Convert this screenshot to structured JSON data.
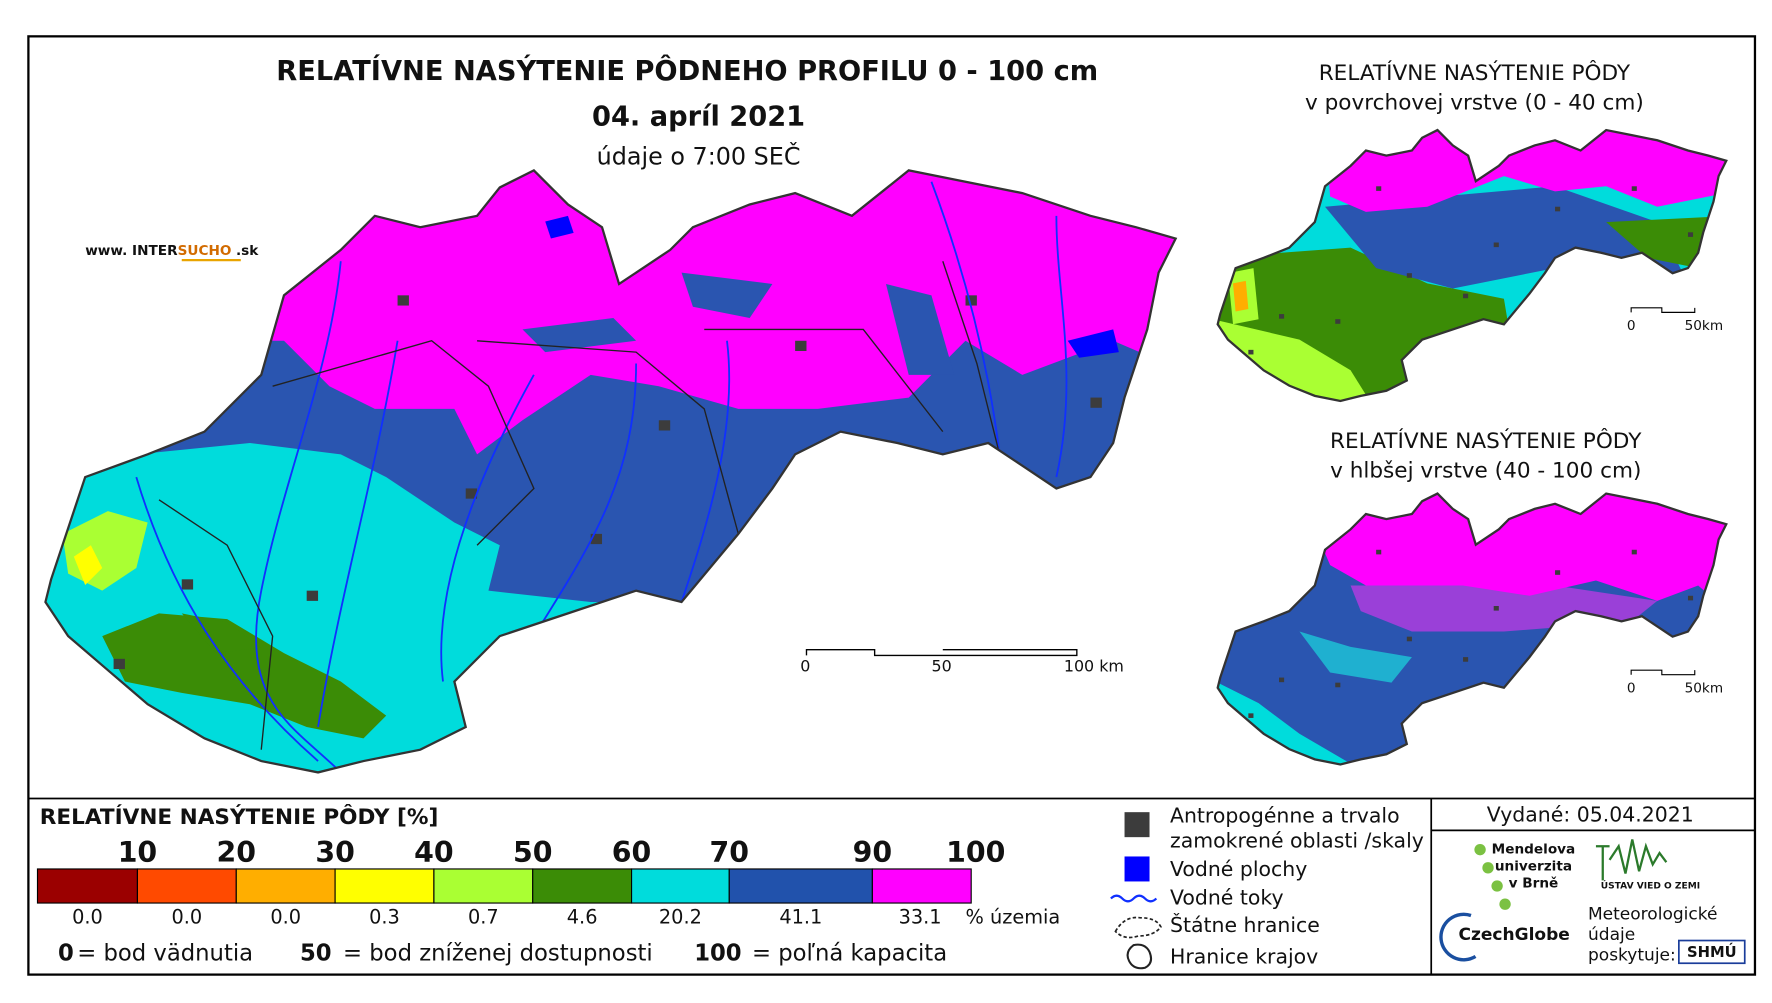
{
  "header": {
    "title": "RELATÍVNE NASÝTENIE PÔDNEHO PROFILU 0 - 100 cm",
    "date": "04. apríl 2021",
    "time_note": "údaje o 7:00 SEČ"
  },
  "website": {
    "prefix": "www. INTER",
    "brand": "SUCHO",
    "suffix": ".sk"
  },
  "main_map": {
    "scale_labels": [
      "0",
      "50",
      "100 km"
    ]
  },
  "insets": [
    {
      "title": "RELATÍVNE NASÝTENIE PÔDY",
      "subtitle": "v povrchovej vrstve (0 - 40 cm)",
      "scale_labels": [
        "0",
        "50km"
      ]
    },
    {
      "title": "RELATÍVNE NASÝTENIE PÔDY",
      "subtitle": "v hlbšej vrstve (40 - 100 cm)",
      "scale_labels": [
        "0",
        "50km"
      ]
    }
  ],
  "legend": {
    "title": "RELATÍVNE NASÝTENIE PÔDY [%]",
    "breaks": [
      "10",
      "20",
      "30",
      "40",
      "50",
      "60",
      "70",
      "90",
      "100"
    ],
    "classes": [
      {
        "color": "#9b0000",
        "share": "0.0"
      },
      {
        "color": "#ff4a00",
        "share": "0.0"
      },
      {
        "color": "#ffae00",
        "share": "0.0"
      },
      {
        "color": "#ffff00",
        "share": "0.3"
      },
      {
        "color": "#aaff33",
        "share": "0.7"
      },
      {
        "color": "#3b8c06",
        "share": "4.6"
      },
      {
        "color": "#00dcdc",
        "share": "20.2"
      },
      {
        "color": "#2152ac",
        "share": "41.1"
      },
      {
        "color": "#ff00ff",
        "share": "33.1"
      }
    ],
    "share_unit": "% územia",
    "notes": [
      {
        "value": "0",
        "text": "= bod vädnutia"
      },
      {
        "value": "50",
        "text": "= bod zníženej dostupnosti"
      },
      {
        "value": "100",
        "text": "= poľná kapacita"
      }
    ]
  },
  "symbols": {
    "anthropogenic": [
      "Antropogénne a trvalo",
      "zamokrené oblasti /skaly"
    ],
    "water_bodies": "Vodné plochy",
    "rivers": "Vodné toky",
    "state_border": "Štátne hranice",
    "region_border": "Hranice krajov"
  },
  "issued": "Vydané: 05.04.2021",
  "providers": {
    "mendel": [
      "Mendelova",
      "univerzita",
      "v Brně"
    ],
    "czechglobe": "CzechGlobe",
    "uvz": "ÚSTAV VIED O ZEMI",
    "meteo": [
      "Meteorologické",
      "údaje",
      "poskytuje:"
    ],
    "shmu": "SHMÚ"
  }
}
